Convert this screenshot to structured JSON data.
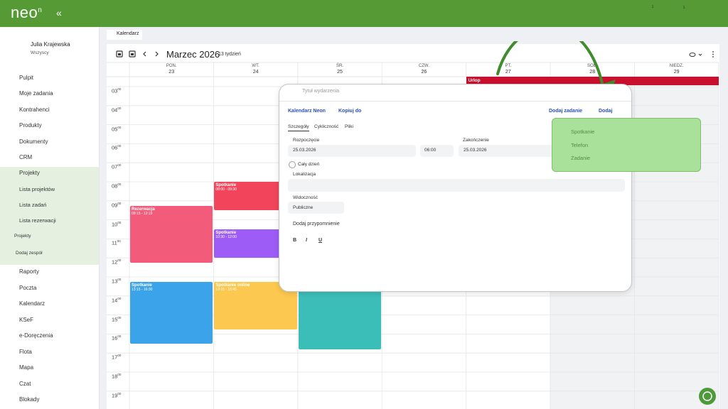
{
  "header": {
    "logo": "neo",
    "logo_sup": "n",
    "collapse": "«",
    "badges": [
      "1",
      "1"
    ]
  },
  "sidebar": {
    "user_name": "Julia Krajewska",
    "user_role": "Wszyscy",
    "menu_top": [
      "Pulpit",
      "Moje zadania",
      "Kontrahenci",
      "Produkty",
      "Dokumenty",
      "CRM",
      "Projekty"
    ],
    "submenu": [
      "Lista projektów",
      "Lista zadań",
      "Lista rezerwacji"
    ],
    "back": "Projekty",
    "add_team": "Dodaj zespół",
    "menu_bottom": [
      "Raporty",
      "Poczta",
      "Kalendarz",
      "KSeF",
      "e-Doręczenia",
      "Flota",
      "Mapa",
      "Czat",
      "Blokady"
    ]
  },
  "tab": {
    "label": "Kalendarz"
  },
  "calendar": {
    "month": "Marzec 2026",
    "week": "13 tydzień",
    "hour_minutes": "00",
    "hours": [
      "03",
      "04",
      "05",
      "06",
      "07",
      "08",
      "09",
      "10",
      "11",
      "12",
      "13",
      "14",
      "15",
      "16",
      "17",
      "18",
      "19"
    ],
    "all_day": {
      "title": "Urlop",
      "color": "#c8102e"
    },
    "days": [
      {
        "name": "PON.",
        "date": "23",
        "events": [
          {
            "title": "Rezerwacja",
            "time": "09:15 - 12:15",
            "color": "#f25c7a"
          },
          {
            "title": "Spotkanie",
            "time": "13:15 - 16:30",
            "color": "#3ba3ea"
          }
        ]
      },
      {
        "name": "WT.",
        "date": "24",
        "events": [
          {
            "title": "Spotkanie",
            "time": "08:00 - 09:30",
            "color": "#f2455b"
          },
          {
            "title": "Spotkanie",
            "time": "10:30 - 12:00",
            "color": "#9d5cf5"
          },
          {
            "title": "Spotkanie online",
            "time": "13:15 - 15:45",
            "color": "#fcc84f"
          }
        ]
      },
      {
        "name": "ŚR.",
        "date": "25",
        "events": []
      },
      {
        "name": "CZW.",
        "date": "26",
        "events": []
      },
      {
        "name": "PT.",
        "date": "27",
        "events": []
      },
      {
        "name": "SOB.",
        "date": "28",
        "events": []
      },
      {
        "name": "NIEDZ.",
        "date": "29",
        "events": []
      }
    ]
  },
  "modal": {
    "title_placeholder": "Tytuł wydarzenia",
    "calendar_select": "Kalendarz Neon",
    "copy_to": "Kopiuj do",
    "add_task": "Dodaj zadanie",
    "add": "Dodaj",
    "tabs": [
      "Szczegóły",
      "Cykliczność",
      "Pliki"
    ],
    "start_label": "Rozpoczęcie",
    "start_date": "25.03.2026",
    "start_time": "06:00",
    "end_label": "Zakończenie",
    "end_date": "25.03.2026",
    "all_day": "Cały dzień",
    "location_label": "Lokalizacja",
    "visibility_label": "Widoczność",
    "visibility_value": "Publiczne",
    "reminder": "Dodaj przypomnienie",
    "toolbar": [
      "B",
      "I",
      "U"
    ]
  },
  "dropdown": {
    "items": [
      "Spotkanie",
      "Telefon",
      "Zadanie"
    ]
  }
}
